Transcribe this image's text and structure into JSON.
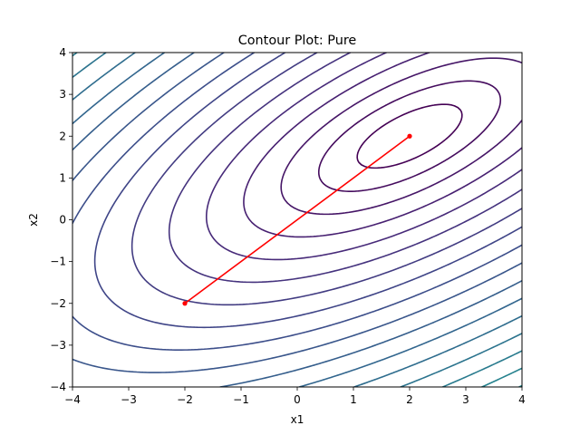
{
  "chart_data": {
    "type": "contour",
    "title": "Contour Plot: Pure",
    "xlabel": "x1",
    "ylabel": "x2",
    "xlim": [
      -4,
      4
    ],
    "ylim": [
      -4,
      4
    ],
    "xticks": [
      -4,
      -3,
      -2,
      -1,
      0,
      1,
      2,
      3,
      4
    ],
    "yticks": [
      -4,
      -3,
      -2,
      -1,
      0,
      1,
      2,
      3,
      4
    ],
    "grid": false,
    "colormap": "viridis",
    "function": {
      "center": [
        2,
        2
      ],
      "quadratic_form": [
        [
          1,
          -0.8
        ],
        [
          -0.8,
          1.5
        ]
      ]
    },
    "levels": [
      0.5,
      1.5,
      3,
      5,
      7.5,
      10.5,
      14,
      18,
      22.5,
      27.5,
      33,
      39,
      45.5,
      52.5,
      60,
      68,
      76.5,
      85.5,
      95,
      105,
      115.5,
      126.5,
      138,
      150,
      162.5,
      175.5,
      189,
      203,
      217.5,
      232.5,
      248,
      264,
      280.5,
      297.5,
      315
    ],
    "path": {
      "color": "#ff0000",
      "x": [
        -2,
        2
      ],
      "y": [
        -2,
        2
      ]
    }
  }
}
